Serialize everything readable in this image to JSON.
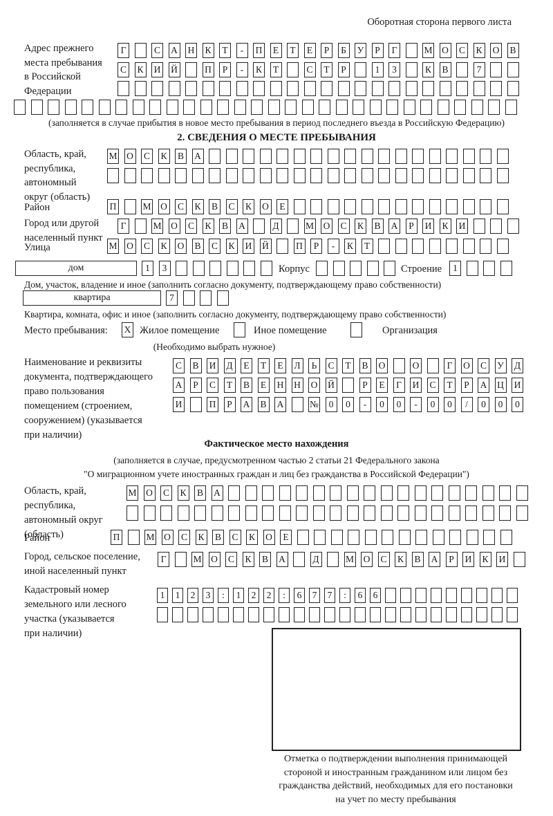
{
  "meta": {
    "side_note": "Оборотная сторона первого листа"
  },
  "prev_address": {
    "label_lines": [
      "Адрес прежнего",
      "места пребывания",
      "в Российской",
      "Федерации"
    ],
    "row1": "Г САНКТ-ПЕТЕРБУРГ МОСКОВ",
    "row2": "СКИЙ ПР-КТ СТР 13 КВ 7  ",
    "row3": "                        ",
    "row4": "                              ",
    "footnote": "(заполняется в случае прибытия в новое место пребывания в период последнего въезда в Российскую Федерацию)"
  },
  "section2": {
    "title": "2. СВЕДЕНИЯ О МЕСТЕ ПРЕБЫВАНИЯ",
    "region": {
      "label_lines": [
        "Область, край,",
        "республика,",
        "автономный",
        "округ (область)"
      ],
      "row1": "МОСКВА                  ",
      "row2": "                        "
    },
    "district": {
      "label": "Район",
      "row": "П МОСКВСКОЕ             "
    },
    "city": {
      "label_lines": [
        "Город или другой",
        "населенный пункт"
      ],
      "row": "Г МОСКВА Д МОСКВАРИКИ   "
    },
    "street": {
      "label": "Улица",
      "row": "МОСКОВСКИЙ ПР-КТ        "
    },
    "house": {
      "type_label": "дом",
      "number_cells": "13      ",
      "korpus_label": "Корпус",
      "korpus_cells": "     ",
      "stroenie_label": "Строение",
      "stroenie_cells": "1   ",
      "footnote": "Дом, участок, владение и иное (заполнить согласно документу, подтверждающему право собственности)"
    },
    "apartment": {
      "type_label": "квартира",
      "number_cells": "7   ",
      "footnote": "Квартира, комната, офис и иное (заполнить согласно документу, подтверждающему право собственности)"
    },
    "stay_place": {
      "label": "Место пребывания:",
      "residential_checkbox": "X",
      "residential_label": "Жилое помещение",
      "other_checkbox": "",
      "other_label": "Иное помещение",
      "organization_checkbox": "",
      "organization_label": "Организация",
      "note": "(Необходимо выбрать нужное)"
    },
    "document": {
      "label_lines": [
        "Наименование и реквизиты",
        "документа, подтверждающего",
        "право пользования",
        "помещением (строением,",
        "сооружением) (указывается",
        "при наличии)"
      ],
      "row1": "СВИДЕТЕЛЬСТВО О ГОСУД",
      "row2": "АРСТВЕННОЙ РЕГИСТРАЦИ",
      "row3": "И ПРАВА №00-00-00/000"
    }
  },
  "actual_location": {
    "title": "Фактическое место нахождения",
    "note_lines": [
      "(заполняется в случае, предусмотренном частью 2 статьи 21 Федерального закона",
      "\"О миграционном учете иностранных граждан и лиц без гражданства в Российской Федерации\")"
    ],
    "region": {
      "label_lines": [
        "Область, край,",
        "республика,",
        "автономный округ",
        "(область)"
      ],
      "row1": "МОСКВА                  ",
      "row2": "                        "
    },
    "district": {
      "label": "Район",
      "row": "П МОСКВСКОЕ             "
    },
    "city": {
      "label_lines": [
        "Город, сельское поселение,",
        "иной населенный пункт"
      ],
      "row": "Г МОСКВА Д МОСКВАРИКИ "
    },
    "cadastral": {
      "label_lines": [
        "Кадастровый номер",
        "земельного или лесного",
        "участка (указывается",
        "при наличии)"
      ],
      "row1": "1123:122:677:66         ",
      "row2": "                        "
    },
    "stamp_note_lines": [
      "Отметка о подтверждении выполнения принимающей",
      "стороной и иностранным гражданином или лицом без",
      "гражданства действий, необходимых для его постановки",
      "на учет по месту пребывания"
    ]
  }
}
